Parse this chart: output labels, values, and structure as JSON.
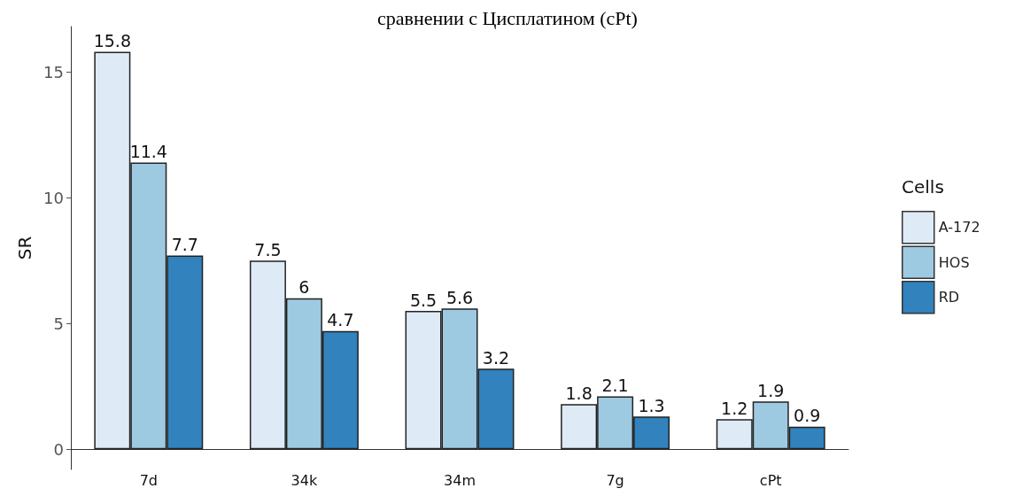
{
  "chart_data": {
    "type": "bar",
    "title": "сравнении с Цисплатином (cPt)",
    "ylabel": "SR",
    "legend_title": "Cells",
    "categories": [
      "7d",
      "34k",
      "34m",
      "7g",
      "cPt"
    ],
    "series": [
      {
        "name": "A-172",
        "color": "#deebf7",
        "values": [
          15.8,
          7.5,
          5.5,
          1.8,
          1.2
        ]
      },
      {
        "name": "HOS",
        "color": "#9ecae1",
        "values": [
          11.4,
          6,
          5.6,
          2.1,
          1.9
        ]
      },
      {
        "name": "RD",
        "color": "#3182bd",
        "values": [
          7.7,
          4.7,
          3.2,
          1.3,
          0.9
        ]
      }
    ],
    "ylim": [
      -0.8,
      16.8
    ],
    "yticks": [
      0,
      5,
      10,
      15
    ],
    "grid": false,
    "legend": "right",
    "data_labels": true
  }
}
